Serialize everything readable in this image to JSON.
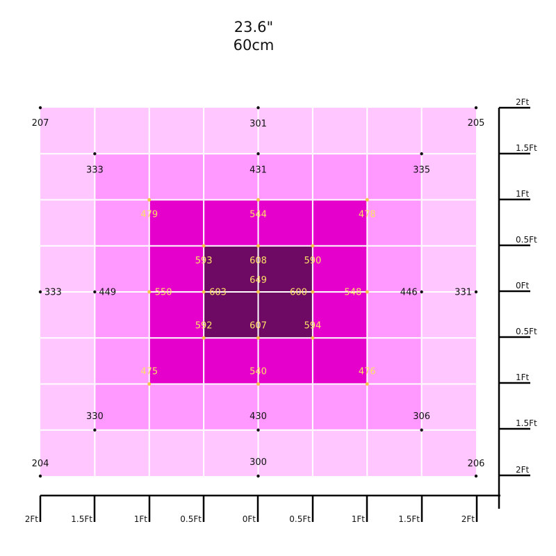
{
  "title": {
    "line1": "23.6\"",
    "line2": "60cm"
  },
  "colors": {
    "zone_outer": "#ffc6ff",
    "zone_mid": "#ff99ff",
    "zone_inner": "#e600cc",
    "zone_core": "#6e0a64",
    "grid": "#ffffff",
    "label_dark": "#111111",
    "label_light": "#ffe066",
    "dot_light": "#f5c846",
    "axis": "#000000"
  },
  "chart_data": {
    "type": "heatmap",
    "title": "23.6\" 60cm",
    "xlabel": "",
    "ylabel": "",
    "x_ticks": [
      "2Ft",
      "1.5Ft",
      "1Ft",
      "0.5Ft",
      "0Ft",
      "0.5Ft",
      "1Ft",
      "1.5Ft",
      "2Ft"
    ],
    "y_ticks": [
      "2Ft",
      "1.5Ft",
      "1Ft",
      "0.5Ft",
      "0Ft",
      "0.5Ft",
      "1Ft",
      "1.5Ft",
      "2Ft"
    ],
    "xlim": [
      -2,
      2
    ],
    "ylim": [
      -2,
      2
    ],
    "zones": [
      {
        "level": "outer",
        "half_extent_ft": 2.0
      },
      {
        "level": "mid",
        "half_extent_ft": 1.5
      },
      {
        "level": "inner",
        "half_extent_ft": 1.0
      },
      {
        "level": "core",
        "half_extent_ft": 0.5
      }
    ],
    "points": [
      {
        "x": -2,
        "y": 2,
        "value": "207"
      },
      {
        "x": 0,
        "y": 2,
        "value": "301"
      },
      {
        "x": 2,
        "y": 2,
        "value": "205"
      },
      {
        "x": -1.5,
        "y": 1.5,
        "value": "333"
      },
      {
        "x": 0,
        "y": 1.5,
        "value": "431"
      },
      {
        "x": 1.5,
        "y": 1.5,
        "value": "335"
      },
      {
        "x": -1,
        "y": 1,
        "value": "479"
      },
      {
        "x": 0,
        "y": 1,
        "value": "544"
      },
      {
        "x": 1,
        "y": 1,
        "value": "478"
      },
      {
        "x": -0.5,
        "y": 0.5,
        "value": "593"
      },
      {
        "x": 0,
        "y": 0.5,
        "value": "608"
      },
      {
        "x": 0.5,
        "y": 0.5,
        "value": "590"
      },
      {
        "x": 0,
        "y": 0,
        "value": "649"
      },
      {
        "x": -2,
        "y": 0,
        "value": "333"
      },
      {
        "x": -1.5,
        "y": 0,
        "value": "449"
      },
      {
        "x": -1,
        "y": 0,
        "value": "550"
      },
      {
        "x": -0.5,
        "y": 0,
        "value": "603"
      },
      {
        "x": 0.5,
        "y": 0,
        "value": "600"
      },
      {
        "x": 1,
        "y": 0,
        "value": "548"
      },
      {
        "x": 1.5,
        "y": 0,
        "value": "446"
      },
      {
        "x": 2,
        "y": 0,
        "value": "331"
      },
      {
        "x": -0.5,
        "y": -0.5,
        "value": "592"
      },
      {
        "x": 0,
        "y": -0.5,
        "value": "607"
      },
      {
        "x": 0.5,
        "y": -0.5,
        "value": "594"
      },
      {
        "x": -1,
        "y": -1,
        "value": "475"
      },
      {
        "x": 0,
        "y": -1,
        "value": "540"
      },
      {
        "x": 1,
        "y": -1,
        "value": "476"
      },
      {
        "x": -1.5,
        "y": -1.5,
        "value": "330"
      },
      {
        "x": 0,
        "y": -1.5,
        "value": "430"
      },
      {
        "x": 1.5,
        "y": -1.5,
        "value": "306"
      },
      {
        "x": -2,
        "y": -2,
        "value": "204"
      },
      {
        "x": 0,
        "y": -2,
        "value": "300"
      },
      {
        "x": 2,
        "y": -2,
        "value": "206"
      }
    ]
  }
}
